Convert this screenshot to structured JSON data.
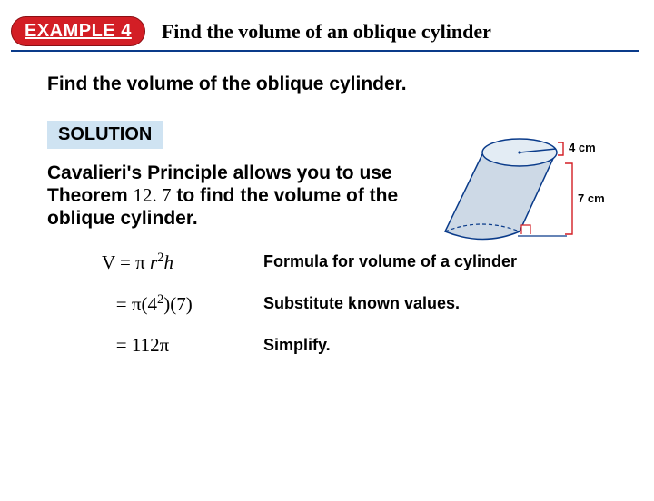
{
  "header": {
    "badge": "EXAMPLE 4",
    "title": "Find the volume of an oblique cylinder",
    "badge_bg": "#d31e25",
    "badge_fg": "#ffffff",
    "underline_color": "#0a3b8a"
  },
  "prompt": "Find the volume of the oblique cylinder.",
  "solution_label": "SOLUTION",
  "solution_bg": "#cfe3f2",
  "explanation": {
    "pre": "Cavalieri's Principle allows you to use Theorem ",
    "theorem": "12. 7",
    "post": " to find the volume of the oblique cylinder."
  },
  "figure": {
    "type": "diagram",
    "radius_label": "4 cm",
    "height_label": "7 cm",
    "fill_top": "#e3ecf4",
    "fill_side": "#cdd9e6",
    "stroke": "#0a3b8a",
    "bracket_color": "#d31e25",
    "label_fontsize": 13
  },
  "steps": [
    {
      "formula_html": "<span class='up'>V = π </span>r<sup><span class='up'>2</span></sup>h",
      "desc": "Formula for volume of a cylinder"
    },
    {
      "formula_html": "<span class='up'>&nbsp;&nbsp;&nbsp;= π(4</span><sup><span class='up'>2</span></sup><span class='up'>)(7)</span>",
      "desc": "Substitute known values."
    },
    {
      "formula_html": "<span class='up'>&nbsp;&nbsp;&nbsp;= 112π</span>",
      "desc": "Simplify."
    }
  ]
}
